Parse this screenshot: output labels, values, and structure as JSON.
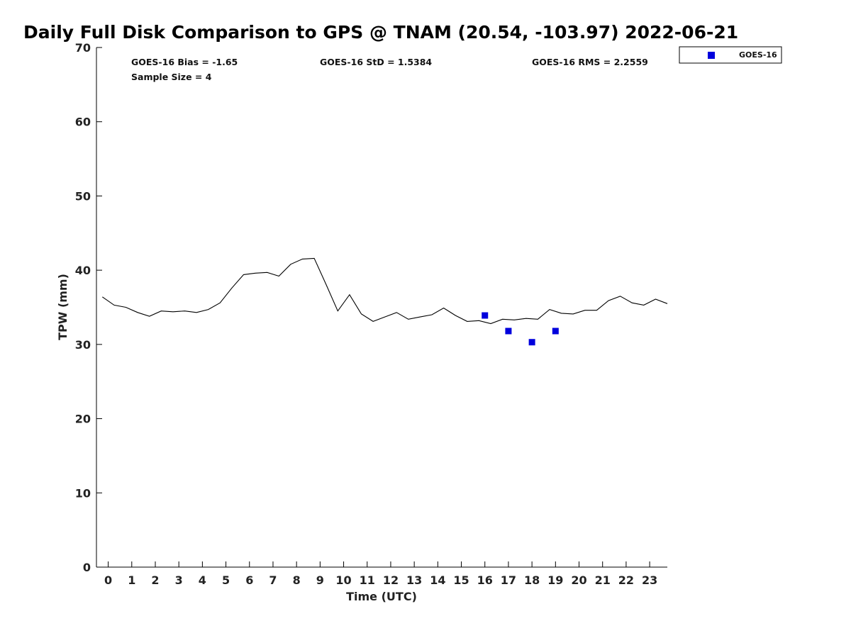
{
  "chart_data": {
    "type": "scatter",
    "title": "Daily Full Disk Comparison to GPS @ TNAM (20.54, -103.97) 2022-06-21",
    "xlabel": "Time (UTC)",
    "ylabel": "TPW (mm)",
    "xlim": [
      -0.5,
      23.75
    ],
    "ylim": [
      0,
      70
    ],
    "x_ticks": [
      0,
      1,
      2,
      3,
      4,
      5,
      6,
      7,
      8,
      9,
      10,
      11,
      12,
      13,
      14,
      15,
      16,
      17,
      18,
      19,
      20,
      21,
      22,
      23
    ],
    "x_tick_labels": [
      "0",
      "1",
      "2",
      "3",
      "4",
      "5",
      "6",
      "7",
      "8",
      "9",
      "10",
      "11",
      "12",
      "13",
      "14",
      "15",
      "16",
      "17",
      "18",
      "19",
      "20",
      "21",
      "22",
      "23"
    ],
    "y_ticks": [
      0,
      10,
      20,
      30,
      40,
      50,
      60,
      70
    ],
    "y_tick_labels": [
      "0",
      "10",
      "20",
      "30",
      "40",
      "50",
      "60",
      "70"
    ],
    "grid": false,
    "legend_position": "outside-top-right",
    "stats": {
      "bias": "GOES-16 Bias = -1.65",
      "std": "GOES-16 StD = 1.5384",
      "rms": "GOES-16 RMS = 2.2559",
      "sample": "Sample Size = 4"
    },
    "gps_line": {
      "color": "#000000",
      "x": [
        -0.25,
        0.25,
        0.75,
        1.25,
        1.75,
        2.25,
        2.75,
        3.25,
        3.75,
        4.25,
        4.75,
        5.25,
        5.75,
        6.25,
        6.75,
        7.25,
        7.75,
        8.25,
        8.75,
        9.25,
        9.75,
        10.25,
        10.75,
        11.25,
        11.75,
        12.25,
        12.75,
        13.25,
        13.75,
        14.25,
        14.75,
        15.25,
        15.75,
        16.25,
        16.75,
        17.25,
        17.75,
        18.25,
        18.75,
        19.25,
        19.75,
        20.25,
        20.75,
        21.25,
        21.75,
        22.25,
        22.75,
        23.25,
        23.75
      ],
      "y": [
        36.4,
        35.3,
        35.0,
        34.3,
        33.8,
        34.5,
        34.4,
        34.5,
        34.3,
        34.7,
        35.6,
        37.6,
        39.4,
        39.6,
        39.7,
        39.2,
        40.8,
        41.5,
        41.6,
        38.1,
        34.5,
        36.7,
        34.1,
        33.1,
        33.7,
        34.3,
        33.4,
        33.7,
        34.0,
        34.9,
        33.9,
        33.1,
        33.2,
        32.8,
        33.4,
        33.3,
        33.5,
        33.4,
        34.7,
        34.2,
        34.1,
        34.6,
        34.6,
        35.9,
        36.5,
        35.6,
        35.3,
        36.1,
        35.5
      ]
    },
    "series": [
      {
        "name": "GOES-16",
        "color": "#0000dd",
        "marker": "square",
        "x": [
          16,
          17,
          18,
          19
        ],
        "y": [
          33.9,
          31.8,
          30.3,
          31.8
        ]
      }
    ]
  }
}
